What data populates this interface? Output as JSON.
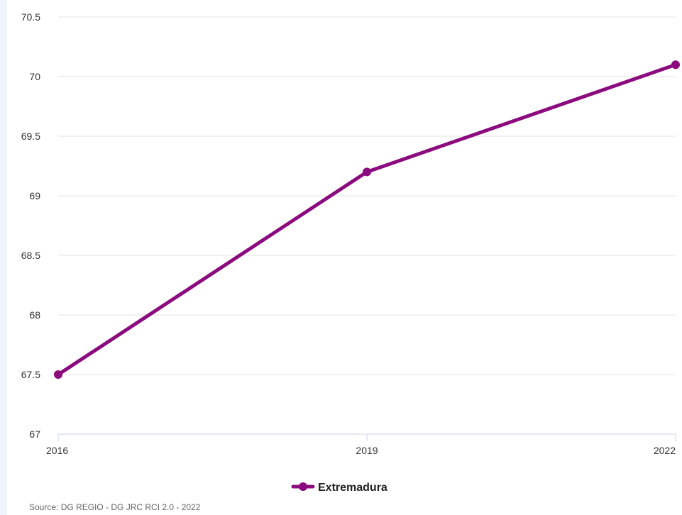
{
  "chart_data": {
    "type": "line",
    "categories": [
      "2016",
      "2019",
      "2022"
    ],
    "series": [
      {
        "name": "Extremadura",
        "values": [
          67.5,
          69.2,
          70.1
        ],
        "color": "#8b0a7e"
      }
    ],
    "y_ticks": [
      "67",
      "67.5",
      "68",
      "68.5",
      "69",
      "69.5",
      "70",
      "70.5"
    ],
    "ylim": [
      67,
      70.5
    ],
    "grid": true,
    "legend_position": "bottom-center"
  },
  "source_text": "Source: DG REGIO - DG JRC RCI 2.0 - 2022",
  "colors": {
    "background": "#eef5fc",
    "gridline": "#e3e3e3",
    "axis": "#ccd6eb"
  }
}
